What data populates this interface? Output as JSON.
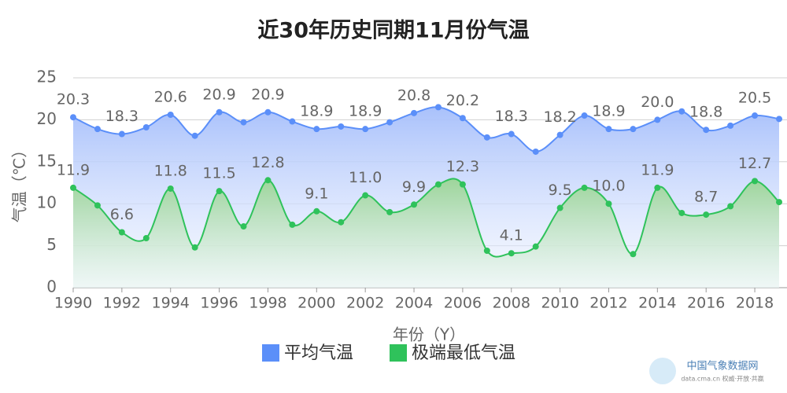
{
  "chart_data": {
    "type": "line",
    "title": "近30年历史同期11月份气温",
    "x_label": "年份（Y）",
    "y_label": "气温（℃）",
    "x": [
      1990,
      1991,
      1992,
      1993,
      1994,
      1995,
      1996,
      1997,
      1998,
      1999,
      2000,
      2001,
      2002,
      2003,
      2004,
      2005,
      2006,
      2007,
      2008,
      2009,
      2010,
      2011,
      2012,
      2013,
      2014,
      2015,
      2016,
      2017,
      2018,
      2019
    ],
    "xlim": [
      1990,
      2019
    ],
    "xticks": [
      1990,
      1992,
      1994,
      1996,
      1998,
      2000,
      2002,
      2004,
      2006,
      2008,
      2010,
      2012,
      2014,
      2016,
      2018
    ],
    "ylim": [
      0,
      25
    ],
    "yticks": [
      0,
      5,
      10,
      15,
      20,
      25
    ],
    "grid": true,
    "legend": "bottom",
    "series": [
      {
        "name": "平均气温",
        "color": "#5b8ff9",
        "fill_top": "#a9c1fb",
        "values": [
          20.3,
          18.9,
          18.3,
          19.1,
          20.6,
          18.1,
          20.9,
          19.7,
          20.9,
          19.8,
          18.9,
          19.2,
          18.9,
          19.7,
          20.8,
          21.5,
          20.2,
          17.9,
          18.3,
          16.2,
          18.2,
          20.5,
          18.9,
          18.9,
          20.0,
          21.0,
          18.8,
          19.3,
          20.5,
          20.1
        ],
        "value_labels": [
          "20.3",
          null,
          "18.3",
          null,
          "20.6",
          null,
          "20.9",
          null,
          "20.9",
          null,
          "18.9",
          null,
          "18.9",
          null,
          "20.8",
          null,
          "20.2",
          null,
          "18.3",
          null,
          "18.2",
          null,
          "18.9",
          null,
          "20.0",
          null,
          "18.8",
          null,
          "20.5",
          null
        ]
      },
      {
        "name": "极端最低气温",
        "color": "#2fc25b",
        "fill_top": "#9dd59a",
        "values": [
          11.9,
          9.8,
          6.6,
          5.9,
          11.8,
          4.8,
          11.5,
          7.3,
          12.8,
          7.5,
          9.1,
          7.8,
          11.0,
          9.0,
          9.9,
          12.3,
          12.3,
          4.4,
          4.1,
          4.9,
          9.5,
          11.9,
          10.0,
          4.0,
          11.9,
          8.9,
          8.7,
          9.7,
          12.7,
          10.2
        ],
        "value_labels": [
          "11.9",
          null,
          "6.6",
          null,
          "11.8",
          null,
          "11.5",
          null,
          "12.8",
          null,
          "9.1",
          null,
          "11.0",
          null,
          "9.9",
          null,
          "12.3",
          null,
          "4.1",
          null,
          "9.5",
          null,
          "10.0",
          null,
          "11.9",
          null,
          "8.7",
          null,
          "12.7",
          null
        ]
      }
    ]
  },
  "branding": {
    "name": "中国气象数据网",
    "slogan": "data.cma.cn 权威·开放·共赢"
  }
}
